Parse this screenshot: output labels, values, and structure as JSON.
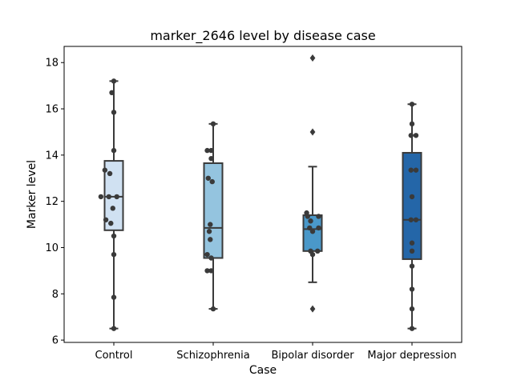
{
  "chart_data": {
    "type": "box",
    "title": "marker_2646 level by disease case",
    "xlabel": "Case",
    "ylabel": "Marker level",
    "ylim": [
      5.9,
      18.7
    ],
    "yticks": [
      6,
      8,
      10,
      12,
      14,
      16,
      18
    ],
    "grid": false,
    "categories": [
      "Control",
      "Schizophrenia",
      "Bipolar disorder",
      "Major depression"
    ],
    "colors": [
      "#d0e1f2",
      "#94c4df",
      "#4a98c9",
      "#2466a8"
    ],
    "edge_color": "#3a3a3a",
    "point_color": "#3a3a3a",
    "boxes": [
      {
        "q1": 10.75,
        "median": 12.2,
        "q3": 13.75,
        "whisker_low": 6.5,
        "whisker_high": 17.2,
        "outliers": []
      },
      {
        "q1": 9.55,
        "median": 10.85,
        "q3": 13.65,
        "whisker_low": 7.35,
        "whisker_high": 15.35,
        "outliers": []
      },
      {
        "q1": 9.85,
        "median": 10.8,
        "q3": 11.4,
        "whisker_low": 8.5,
        "whisker_high": 13.5,
        "outliers": [
          18.2,
          15.0,
          7.35
        ]
      },
      {
        "q1": 9.5,
        "median": 11.2,
        "q3": 14.1,
        "whisker_low": 6.5,
        "whisker_high": 16.2,
        "outliers": []
      }
    ],
    "points": [
      [
        [
          0,
          17.2
        ],
        [
          -0.02,
          16.7
        ],
        [
          0,
          15.85
        ],
        [
          0,
          14.2
        ],
        [
          -0.09,
          13.35
        ],
        [
          -0.04,
          13.2
        ],
        [
          -0.13,
          12.2
        ],
        [
          -0.05,
          12.2
        ],
        [
          0.03,
          12.2
        ],
        [
          -0.01,
          11.7
        ],
        [
          -0.08,
          11.2
        ],
        [
          -0.03,
          11.05
        ],
        [
          0,
          10.5
        ],
        [
          0,
          9.7
        ],
        [
          0,
          7.85
        ],
        [
          0,
          6.5
        ]
      ],
      [
        [
          0,
          15.35
        ],
        [
          -0.06,
          14.2
        ],
        [
          -0.02,
          14.2
        ],
        [
          -0.02,
          13.85
        ],
        [
          -0.05,
          13.0
        ],
        [
          -0.01,
          12.85
        ],
        [
          -0.03,
          11.0
        ],
        [
          -0.04,
          10.7
        ],
        [
          -0.03,
          10.35
        ],
        [
          -0.06,
          9.7
        ],
        [
          -0.02,
          9.55
        ],
        [
          -0.06,
          9.0
        ],
        [
          -0.02,
          9.0
        ],
        [
          0,
          7.35
        ]
      ],
      [
        [
          -0.06,
          11.5
        ],
        [
          -0.05,
          11.35
        ],
        [
          0.06,
          11.35
        ],
        [
          -0.02,
          11.15
        ],
        [
          -0.03,
          10.85
        ],
        [
          0.06,
          10.85
        ],
        [
          0.0,
          10.7
        ],
        [
          -0.02,
          9.85
        ],
        [
          0.05,
          9.85
        ],
        [
          0,
          9.7
        ]
      ],
      [
        [
          0,
          16.2
        ],
        [
          0,
          15.35
        ],
        [
          -0.01,
          14.85
        ],
        [
          0.04,
          14.85
        ],
        [
          -0.01,
          13.35
        ],
        [
          0.04,
          13.35
        ],
        [
          0,
          12.2
        ],
        [
          -0.01,
          11.2
        ],
        [
          0.04,
          11.2
        ],
        [
          0,
          10.2
        ],
        [
          0,
          9.85
        ],
        [
          0,
          9.2
        ],
        [
          0,
          8.2
        ],
        [
          0,
          7.35
        ],
        [
          0,
          6.5
        ]
      ]
    ]
  }
}
